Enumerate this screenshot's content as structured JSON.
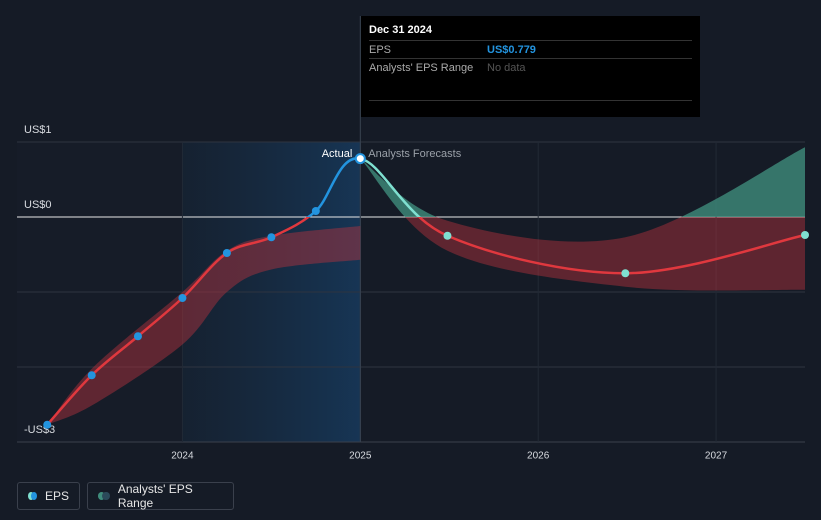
{
  "chart_data": {
    "type": "line",
    "xlim": [
      2023.07,
      2027.5
    ],
    "xticks": [
      2024,
      2025,
      2026,
      2027
    ],
    "ylim": [
      -3,
      1
    ],
    "yticks": [
      {
        "value": 1,
        "label": "US$1"
      },
      {
        "value": 0,
        "label": "US$0"
      },
      {
        "value": -3,
        "label": "-US$3"
      }
    ],
    "ygrid": [
      1,
      0,
      -1,
      -2,
      -3
    ],
    "marker_x": 2025,
    "actual_label": "Actual",
    "forecast_label": "Analysts Forecasts",
    "series": [
      {
        "name": "EPS",
        "color": "#2394df",
        "forecast_color": "#7fe0d0",
        "negative_color": "#e0383e",
        "x": [
          2023.24,
          2023.49,
          2023.75,
          2024.0,
          2024.25,
          2024.5,
          2024.75,
          2025.0,
          2025.49,
          2026.49,
          2027.5
        ],
        "values": [
          -2.77,
          -2.11,
          -1.59,
          -1.08,
          -0.48,
          -0.27,
          0.08,
          0.779,
          -0.25,
          -0.75,
          -0.24
        ]
      }
    ],
    "range": {
      "name": "Analysts' EPS Range",
      "positive_color": "#3f8c7c",
      "negative_color": "#b8323e",
      "x": [
        2023.24,
        2023.5,
        2024.0,
        2024.25,
        2024.5,
        2025.0,
        null,
        2025.0,
        2025.49,
        2026.49,
        2027.5
      ],
      "high": [
        -2.77,
        -2.0,
        -1.0,
        -0.45,
        -0.25,
        -0.12,
        null,
        0.779,
        -0.05,
        -0.27,
        0.93
      ],
      "low": [
        -2.77,
        -2.5,
        -1.7,
        -1.0,
        -0.7,
        -0.57,
        null,
        0.779,
        -0.45,
        -0.93,
        -0.97
      ]
    },
    "tooltip": {
      "date": "Dec 31 2024",
      "rows": [
        {
          "label": "EPS",
          "value": "US$0.779"
        },
        {
          "label": "Analysts' EPS Range",
          "value": "No data"
        }
      ]
    }
  }
}
